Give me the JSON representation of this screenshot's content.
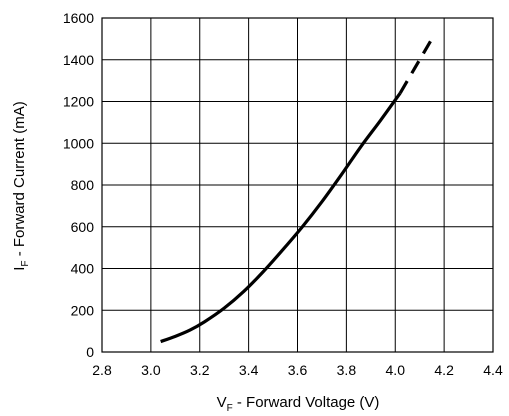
{
  "chart_data": {
    "type": "line",
    "title": "",
    "xlabel": {
      "main": "V",
      "sub": "F",
      "rest": " - Forward Voltage (V)"
    },
    "ylabel": {
      "main": "I",
      "sub": "F",
      "rest": " - Forward Current (mA)"
    },
    "xlim": [
      2.8,
      4.4
    ],
    "ylim": [
      0,
      1600
    ],
    "xticks": [
      "2.8",
      "3.0",
      "3.2",
      "3.4",
      "3.6",
      "3.8",
      "4.0",
      "4.2",
      "4.4"
    ],
    "yticks": [
      "0",
      "200",
      "400",
      "600",
      "800",
      "1000",
      "1200",
      "1400",
      "1600"
    ],
    "grid": true,
    "series": [
      {
        "style": "solid",
        "x": [
          3.04,
          3.1,
          3.16,
          3.22,
          3.3,
          3.38,
          3.46,
          3.54,
          3.62,
          3.7,
          3.78,
          3.86,
          3.94,
          4.02
        ],
        "y": [
          50,
          75,
          105,
          145,
          210,
          290,
          385,
          490,
          600,
          720,
          850,
          985,
          1110,
          1240
        ]
      },
      {
        "style": "dashed",
        "x": [
          4.02,
          4.08,
          4.15
        ],
        "y": [
          1240,
          1360,
          1500
        ]
      }
    ]
  }
}
